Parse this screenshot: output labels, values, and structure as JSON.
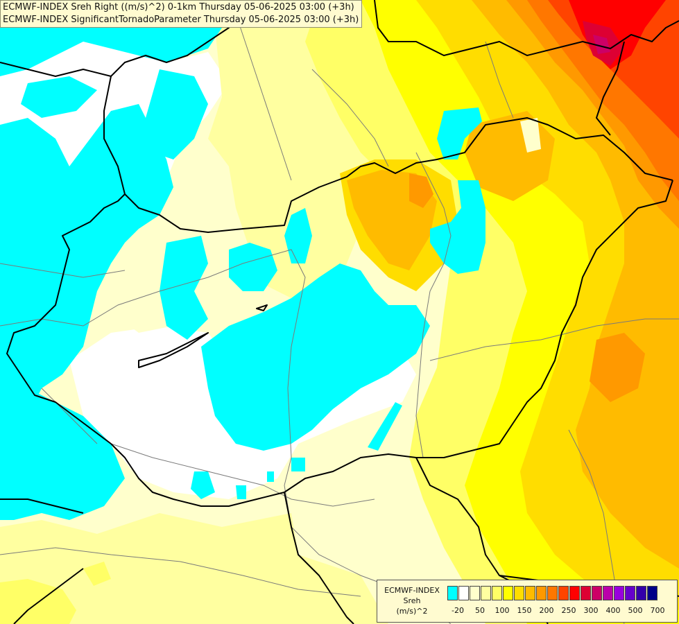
{
  "title": {
    "line1": "ECMWF-INDEX Sreh Right ((m/s)^2) 0-1km Thursday 05-06-2025 03:00 (+3h)",
    "line2": "ECMWF-INDEX SignificantTornadoParameter Thursday 05-06-2025 03:00 (+3h)"
  },
  "legend": {
    "source": "ECMWF-INDEX",
    "parameter": "Sreh",
    "unit": "(m/s)^2",
    "colors": [
      "#00ffff",
      "#ffffff",
      "#ffffcc",
      "#ffffa0",
      "#ffff66",
      "#ffff00",
      "#ffdd00",
      "#ffbb00",
      "#ff9900",
      "#ff7700",
      "#ff4400",
      "#ff0000",
      "#dd0033",
      "#cc0066",
      "#bb00aa",
      "#9900dd",
      "#6600cc",
      "#3300aa",
      "#000088"
    ],
    "ticks": [
      "-20",
      "50",
      "100",
      "150",
      "200",
      "250",
      "300",
      "400",
      "500",
      "700"
    ]
  },
  "map_colors": {
    "cyan": "#00ffff",
    "white": "#ffffff",
    "pale_yellow": "#ffffcc",
    "light_yellow": "#ffffa0",
    "yellow": "#ffff66",
    "bright_yellow": "#ffff00",
    "gold": "#ffdd00",
    "amber": "#ffbb00",
    "orange": "#ff9900",
    "dark_orange": "#ff7700",
    "red_orange": "#ff4400",
    "red": "#ff0000",
    "crimson": "#dd0033",
    "magenta": "#cc0066",
    "border": "#000000",
    "river": "#7a7a7a"
  }
}
